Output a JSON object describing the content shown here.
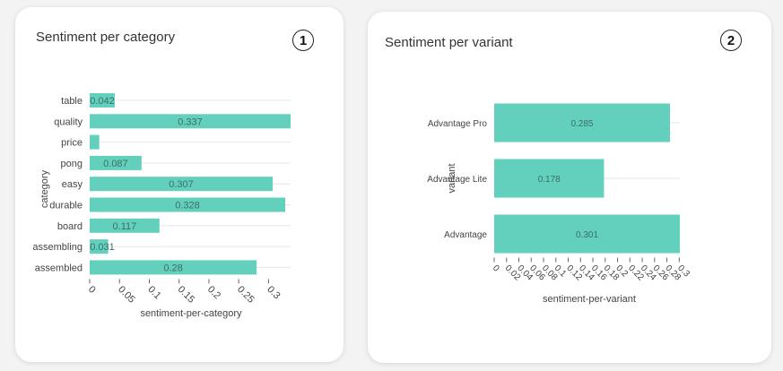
{
  "cards": [
    {
      "title": "Sentiment per category",
      "badge": "1"
    },
    {
      "title": "Sentiment per variant",
      "badge": "2"
    }
  ],
  "colors": {
    "bar": "#62d0bc",
    "grid": "#e6e6e6",
    "axis_text": "#444444",
    "value_text": "#3d6f66"
  },
  "chart_data": [
    {
      "type": "bar",
      "orientation": "horizontal",
      "title": "Sentiment per category",
      "xlabel": "sentiment-per-category",
      "ylabel": "category",
      "categories": [
        "table",
        "quality",
        "price",
        "pong",
        "easy",
        "durable",
        "board",
        "assembling",
        "assembled"
      ],
      "values": [
        0.042,
        0.337,
        0.016,
        0.087,
        0.307,
        0.328,
        0.117,
        0.031,
        0.28
      ],
      "value_labels": [
        "0.042",
        "0.337",
        "",
        "0.087",
        "0.307",
        "0.328",
        "0.117",
        "0.031",
        "0.28"
      ],
      "xticks": [
        "0",
        "0.05",
        "0.1",
        "0.15",
        "0.2",
        "0.25",
        "0.3"
      ],
      "xlim": [
        0,
        0.337
      ],
      "grid": true
    },
    {
      "type": "bar",
      "orientation": "horizontal",
      "title": "Sentiment per variant",
      "xlabel": "sentiment-per-variant",
      "ylabel": "variant",
      "categories": [
        "Advantage Pro",
        "Advantage Lite",
        "Advantage"
      ],
      "values": [
        0.285,
        0.178,
        0.301
      ],
      "value_labels": [
        "0.285",
        "0.178",
        "0.301"
      ],
      "xticks": [
        "0",
        "0.02",
        "0.04",
        "0.06",
        "0.08",
        "0.1",
        "0.12",
        "0.14",
        "0.16",
        "0.18",
        "0.2",
        "0.22",
        "0.24",
        "0.26",
        "0.28",
        "0.3"
      ],
      "xlim": [
        0,
        0.301
      ],
      "grid": true
    }
  ]
}
